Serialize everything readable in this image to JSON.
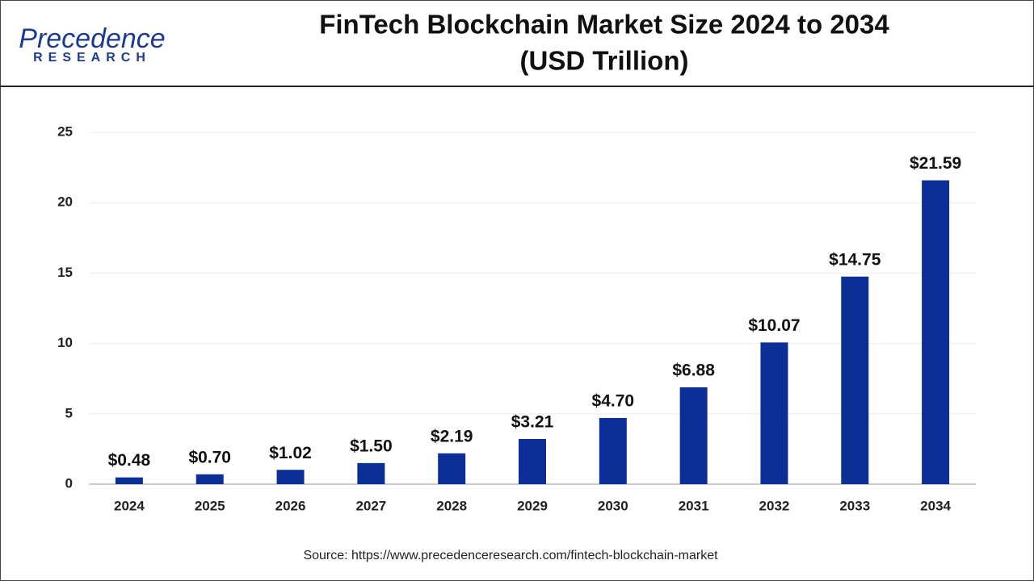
{
  "logo": {
    "name": "Precedence",
    "tagline": "RESEARCH"
  },
  "source": "Source: https://www.precedenceresearch.com/fintech-blockchain-market",
  "chart_data": {
    "type": "bar",
    "title": "FinTech Blockchain Market Size 2024 to 2034",
    "subtitle": "(USD Trillion)",
    "categories": [
      "2024",
      "2025",
      "2026",
      "2027",
      "2028",
      "2029",
      "2030",
      "2031",
      "2032",
      "2033",
      "2034"
    ],
    "values": [
      0.48,
      0.7,
      1.02,
      1.5,
      2.19,
      3.21,
      4.7,
      6.88,
      10.07,
      14.75,
      21.59
    ],
    "value_labels": [
      "$0.48",
      "$0.70",
      "$1.02",
      "$1.50",
      "$2.19",
      "$3.21",
      "$4.70",
      "$6.88",
      "$10.07",
      "$14.75",
      "$21.59"
    ],
    "color": "#0b2f97",
    "ylim": [
      0,
      25
    ],
    "yticks": [
      0,
      5,
      10,
      15,
      20,
      25
    ],
    "grid": true
  }
}
